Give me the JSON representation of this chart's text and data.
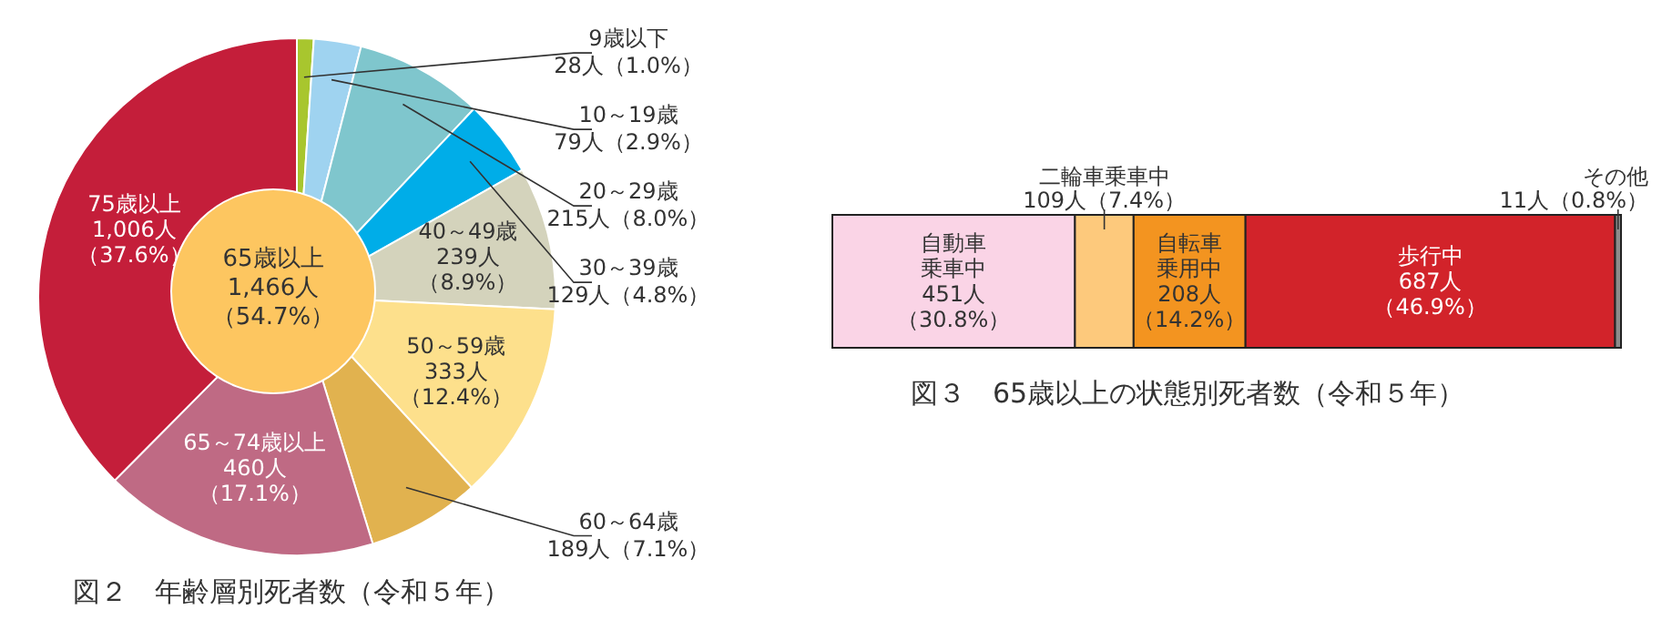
{
  "chart_data": [
    {
      "type": "pie",
      "title": "図２　年齢層別死者数（令和５年）",
      "categories": [
        "9歳以下",
        "10～19歳",
        "20～29歳",
        "30～39歳",
        "40～49歳",
        "50～59歳",
        "60～64歳",
        "65～74歳以上",
        "75歳以上"
      ],
      "values": [
        28,
        79,
        215,
        129,
        239,
        333,
        189,
        460,
        1006
      ],
      "colors": [
        "#a8c62e",
        "#9fd3f0",
        "#7fc6cd",
        "#00ade8",
        "#d4d3bc",
        "#fde08c",
        "#e1b24f",
        "#bf6a84",
        "#c41e3a"
      ],
      "value_labels": [
        "28人（1.0%）",
        "79人（2.9%）",
        "215人（8.0%）",
        "129人（4.8%）",
        "239人（8.9%）",
        "333人（12.4%）",
        "189人（7.1%）",
        "460人（17.1%）",
        "1,006人（37.6%）"
      ],
      "annotations": [
        "65歳以上1,466人（54.7%）"
      ]
    },
    {
      "type": "bar",
      "orientation": "horizontal",
      "stacked": true,
      "title": "図３　65歳以上の状態別死者数（令和５年）",
      "categories": [
        null
      ],
      "series": [
        {
          "name": "自動車乗車中",
          "color": "#fad4e6",
          "values": [
            451
          ],
          "value_labels": [
            "451人（30.8%）"
          ]
        },
        {
          "name": "二輪車乗車中",
          "color": "#fdc97c",
          "values": [
            109
          ],
          "value_labels": [
            "109人（7.4%）"
          ]
        },
        {
          "name": "自転車乗用中",
          "color": "#f39420",
          "values": [
            208
          ],
          "value_labels": [
            "208人（14.2%）"
          ]
        },
        {
          "name": "歩行中",
          "color": "#d2232a",
          "values": [
            687
          ],
          "value_labels": [
            "687人（46.9%）"
          ]
        },
        {
          "name": "その他",
          "color": "#8c8c8c",
          "values": [
            11
          ],
          "value_labels": [
            "11人（0.8%）"
          ]
        }
      ]
    }
  ]
}
